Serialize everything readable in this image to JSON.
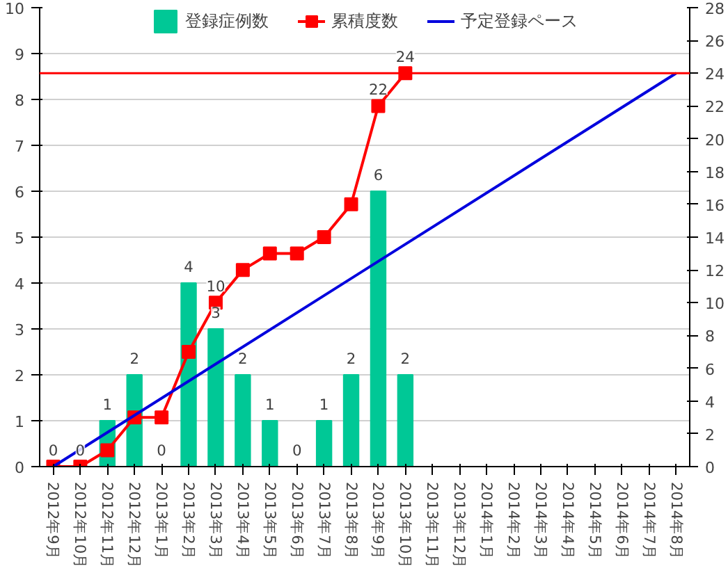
{
  "chart_data": {
    "type": "bar",
    "categories": [
      "2012年9月",
      "2012年10月",
      "2012年11月",
      "2012年12月",
      "2013年1月",
      "2013年2月",
      "2013年3月",
      "2013年4月",
      "2013年5月",
      "2013年6月",
      "2013年7月",
      "2013年8月",
      "2013年9月",
      "2013年10月",
      "2013年11月",
      "2013年12月",
      "2014年1月",
      "2014年2月",
      "2014年3月",
      "2014年4月",
      "2014年5月",
      "2014年6月",
      "2014年7月",
      "2014年8月"
    ],
    "series": [
      {
        "name": "登録症例数",
        "color": "#00c896",
        "values": [
          0,
          0,
          1,
          2,
          0,
          4,
          3,
          2,
          1,
          0,
          1,
          2,
          6,
          2,
          null,
          null,
          null,
          null,
          null,
          null,
          null,
          null,
          null,
          null
        ],
        "value_labels": [
          "0",
          "0",
          "1",
          "2",
          "0",
          "4",
          "3",
          "2",
          "1",
          "0",
          "1",
          "2",
          "6",
          "2",
          null,
          null,
          null,
          null,
          null,
          null,
          null,
          null,
          null,
          null
        ]
      },
      {
        "name": "累積度数",
        "type": "line",
        "axis": "y2",
        "marker": "square",
        "color": "#ff0000",
        "values": [
          0,
          0,
          1,
          3,
          3,
          7,
          10,
          12,
          13,
          13,
          14,
          16,
          22,
          24,
          null,
          null,
          null,
          null,
          null,
          null,
          null,
          null,
          null,
          null
        ],
        "value_labels": [
          null,
          null,
          null,
          null,
          null,
          null,
          "10",
          null,
          null,
          null,
          null,
          null,
          "22",
          "24",
          null,
          null,
          null,
          null,
          null,
          null,
          null,
          null,
          null,
          null
        ]
      },
      {
        "name": "予定登録ペース",
        "type": "line",
        "axis": "y2",
        "marker": "none",
        "color": "#0000dd",
        "x": [
          "2012年9月",
          "2014年8月"
        ],
        "values": [
          0,
          24
        ]
      }
    ],
    "ylim": [
      0,
      10
    ],
    "yticks": [
      0,
      1,
      2,
      3,
      4,
      5,
      6,
      7,
      8,
      9,
      10
    ],
    "y2lim": [
      0,
      28
    ],
    "y2ticks": [
      0,
      2,
      4,
      6,
      8,
      10,
      12,
      14,
      16,
      18,
      20,
      22,
      24,
      26,
      28
    ],
    "ref_lines": [
      {
        "axis": "y2",
        "value": 24,
        "color": "#ff0000"
      }
    ],
    "grid": "y",
    "legend": "top"
  }
}
